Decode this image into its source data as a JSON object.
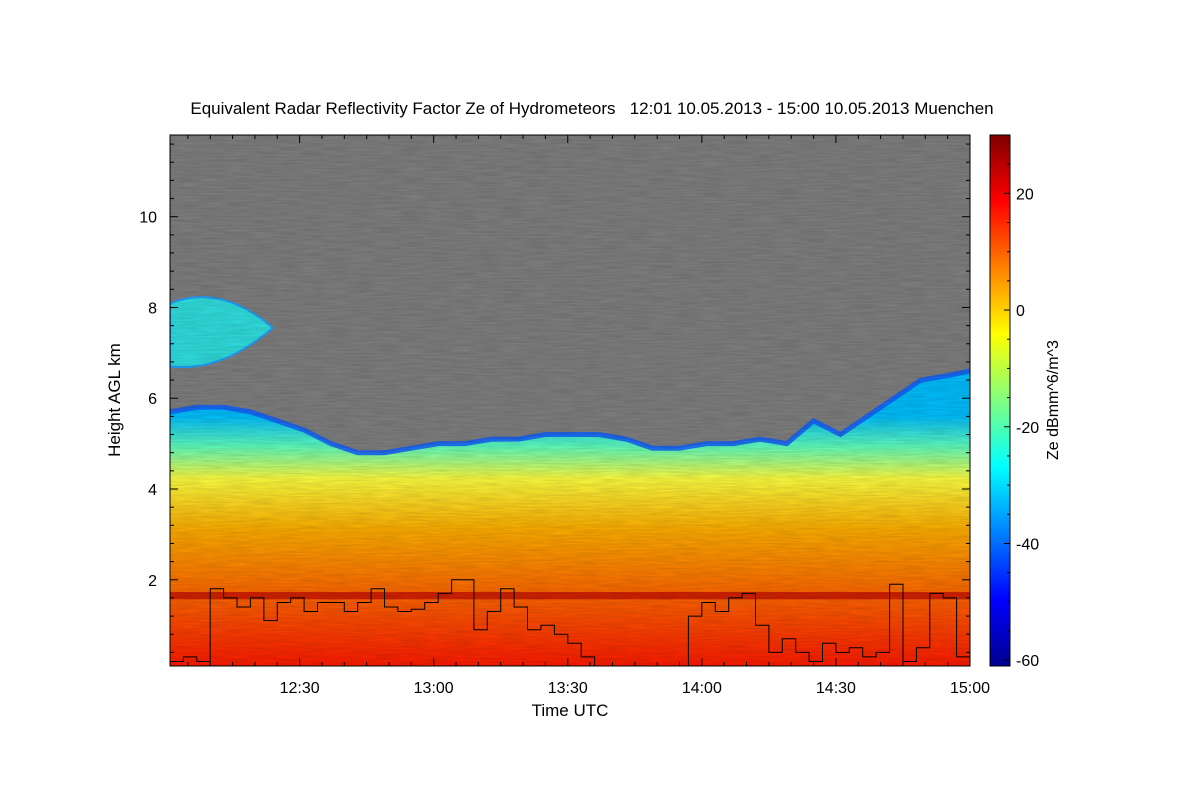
{
  "chart_data": {
    "type": "heatmap",
    "title": "Equivalent Radar Reflectivity Factor Ze of Hydrometeors   12:01 10.05.2013 - 15:00 10.05.2013 Muenchen",
    "xlabel": "Time UTC",
    "ylabel": "Height AGL km",
    "colorbar_label": "Ze dBmm^6/m^3",
    "x_range_min": [
      721,
      900
    ],
    "y_range_km": [
      0.1,
      11.8
    ],
    "x_ticks": [
      {
        "min": 750,
        "label": "12:30"
      },
      {
        "min": 780,
        "label": "13:00"
      },
      {
        "min": 810,
        "label": "13:30"
      },
      {
        "min": 840,
        "label": "14:00"
      },
      {
        "min": 870,
        "label": "14:30"
      },
      {
        "min": 900,
        "label": "15:00"
      }
    ],
    "y_ticks": [
      {
        "value": 2,
        "label": "2"
      },
      {
        "value": 4,
        "label": "4"
      },
      {
        "value": 6,
        "label": "6"
      },
      {
        "value": 8,
        "label": "8"
      },
      {
        "value": 10,
        "label": "10"
      }
    ],
    "colorbar_range": [
      -61,
      30
    ],
    "colorbar_ticks": [
      {
        "value": 20,
        "label": "20"
      },
      {
        "value": 0,
        "label": "0"
      },
      {
        "value": -20,
        "label": "-20"
      },
      {
        "value": -40,
        "label": "-40"
      },
      {
        "value": -60,
        "label": "-60"
      }
    ],
    "no_data_color": "#808080",
    "colormap": [
      "#00008f",
      "#0000ff",
      "#0080ff",
      "#00ffff",
      "#80ff80",
      "#ffff00",
      "#ff8000",
      "#ff0000",
      "#800000"
    ],
    "cloud_top_km": [
      [
        721,
        5.7
      ],
      [
        727,
        5.8
      ],
      [
        733,
        5.8
      ],
      [
        739,
        5.7
      ],
      [
        745,
        5.5
      ],
      [
        751,
        5.3
      ],
      [
        757,
        5.0
      ],
      [
        763,
        4.8
      ],
      [
        769,
        4.8
      ],
      [
        775,
        4.9
      ],
      [
        781,
        5.0
      ],
      [
        787,
        5.0
      ],
      [
        793,
        5.1
      ],
      [
        799,
        5.1
      ],
      [
        805,
        5.2
      ],
      [
        811,
        5.2
      ],
      [
        817,
        5.2
      ],
      [
        823,
        5.1
      ],
      [
        829,
        4.9
      ],
      [
        835,
        4.9
      ],
      [
        841,
        5.0
      ],
      [
        847,
        5.0
      ],
      [
        853,
        5.1
      ],
      [
        859,
        5.0
      ],
      [
        865,
        5.5
      ],
      [
        871,
        5.2
      ],
      [
        877,
        5.6
      ],
      [
        883,
        6.0
      ],
      [
        889,
        6.4
      ],
      [
        895,
        6.5
      ],
      [
        900,
        6.6
      ]
    ],
    "upper_cloud": {
      "time_min": [
        721,
        744
      ],
      "height_km": [
        6.7,
        8.4
      ]
    },
    "melting_layer_km": 1.65,
    "line_series": [
      [
        721,
        0.2
      ],
      [
        724,
        0.3
      ],
      [
        727,
        0.2
      ],
      [
        730,
        1.8
      ],
      [
        733,
        1.6
      ],
      [
        736,
        1.4
      ],
      [
        739,
        1.6
      ],
      [
        742,
        1.1
      ],
      [
        745,
        1.5
      ],
      [
        748,
        1.6
      ],
      [
        751,
        1.3
      ],
      [
        754,
        1.5
      ],
      [
        757,
        1.5
      ],
      [
        760,
        1.3
      ],
      [
        763,
        1.5
      ],
      [
        766,
        1.8
      ],
      [
        769,
        1.4
      ],
      [
        772,
        1.3
      ],
      [
        775,
        1.35
      ],
      [
        778,
        1.5
      ],
      [
        781,
        1.7
      ],
      [
        784,
        2.0
      ],
      [
        787,
        2.0
      ],
      [
        789,
        0.9
      ],
      [
        792,
        1.3
      ],
      [
        795,
        1.8
      ],
      [
        798,
        1.4
      ],
      [
        801,
        0.9
      ],
      [
        804,
        1.0
      ],
      [
        807,
        0.8
      ],
      [
        810,
        0.6
      ],
      [
        813,
        0.3
      ],
      [
        816,
        0.1
      ],
      [
        819,
        0.1
      ],
      [
        822,
        0.1
      ],
      [
        825,
        0.1
      ],
      [
        828,
        0.1
      ],
      [
        831,
        0.1
      ],
      [
        834,
        0.1
      ],
      [
        837,
        1.2
      ],
      [
        840,
        1.5
      ],
      [
        843,
        1.3
      ],
      [
        846,
        1.6
      ],
      [
        849,
        1.7
      ],
      [
        852,
        1.0
      ],
      [
        855,
        0.4
      ],
      [
        858,
        0.7
      ],
      [
        861,
        0.4
      ],
      [
        864,
        0.2
      ],
      [
        867,
        0.6
      ],
      [
        870,
        0.4
      ],
      [
        873,
        0.5
      ],
      [
        876,
        0.3
      ],
      [
        879,
        0.4
      ],
      [
        882,
        1.9
      ],
      [
        885,
        0.2
      ],
      [
        888,
        0.5
      ],
      [
        891,
        1.7
      ],
      [
        894,
        1.6
      ],
      [
        897,
        0.3
      ],
      [
        900,
        0.1
      ]
    ]
  }
}
